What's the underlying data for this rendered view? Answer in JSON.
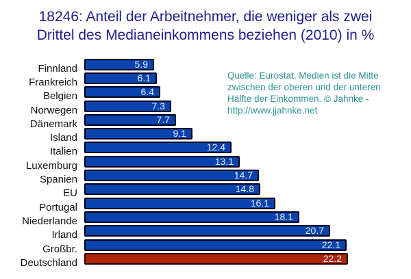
{
  "title": {
    "line1": "18246: Anteil der Arbeitnehmer, die weniger als zwei",
    "line2": "Drittel des Medianeinkommens beziehen (2010) in %"
  },
  "source_note": {
    "lines": [
      "Quelle: Eurostat, Medien ist die Mitte",
      "zwischen der oberen und der unteren",
      "Hälfte der Einkommen. © Jahnke -",
      "http://www.jjahnke.net"
    ]
  },
  "colors": {
    "background": "#ffffff",
    "title": "#1e1e8c",
    "category_label": "#111111",
    "bar_fill": "#0a43ae",
    "bar_border": "#00001e",
    "highlight_fill": "#b02508",
    "highlight_border": "#260500",
    "value_label": "#e9eef8",
    "source_text": "#2e9393"
  },
  "chart_data": {
    "type": "bar",
    "orientation": "horizontal",
    "title": "18246: Anteil der Arbeitnehmer, die weniger als zwei Drittel des Medianeinkommens beziehen (2010) in %",
    "unit": "%",
    "categories": [
      "Finnland",
      "Frankreich",
      "Belgien",
      "Norwegen",
      "Dänemark",
      "Island",
      "Italien",
      "Luxemburg",
      "Spanien",
      "EU",
      "Portugal",
      "Niederlande",
      "Irland",
      "Großbr.",
      "Deutschland"
    ],
    "values": [
      5.9,
      6.1,
      6.4,
      7.3,
      7.7,
      9.1,
      12.4,
      13.1,
      14.7,
      14.8,
      16.1,
      18.1,
      20.7,
      22.1,
      22.2
    ],
    "highlighted_category": "Deutschland",
    "value_labels_inside": true,
    "xlim": [
      0,
      27.5
    ],
    "grid": false,
    "legend": false,
    "axis_lines": false
  }
}
